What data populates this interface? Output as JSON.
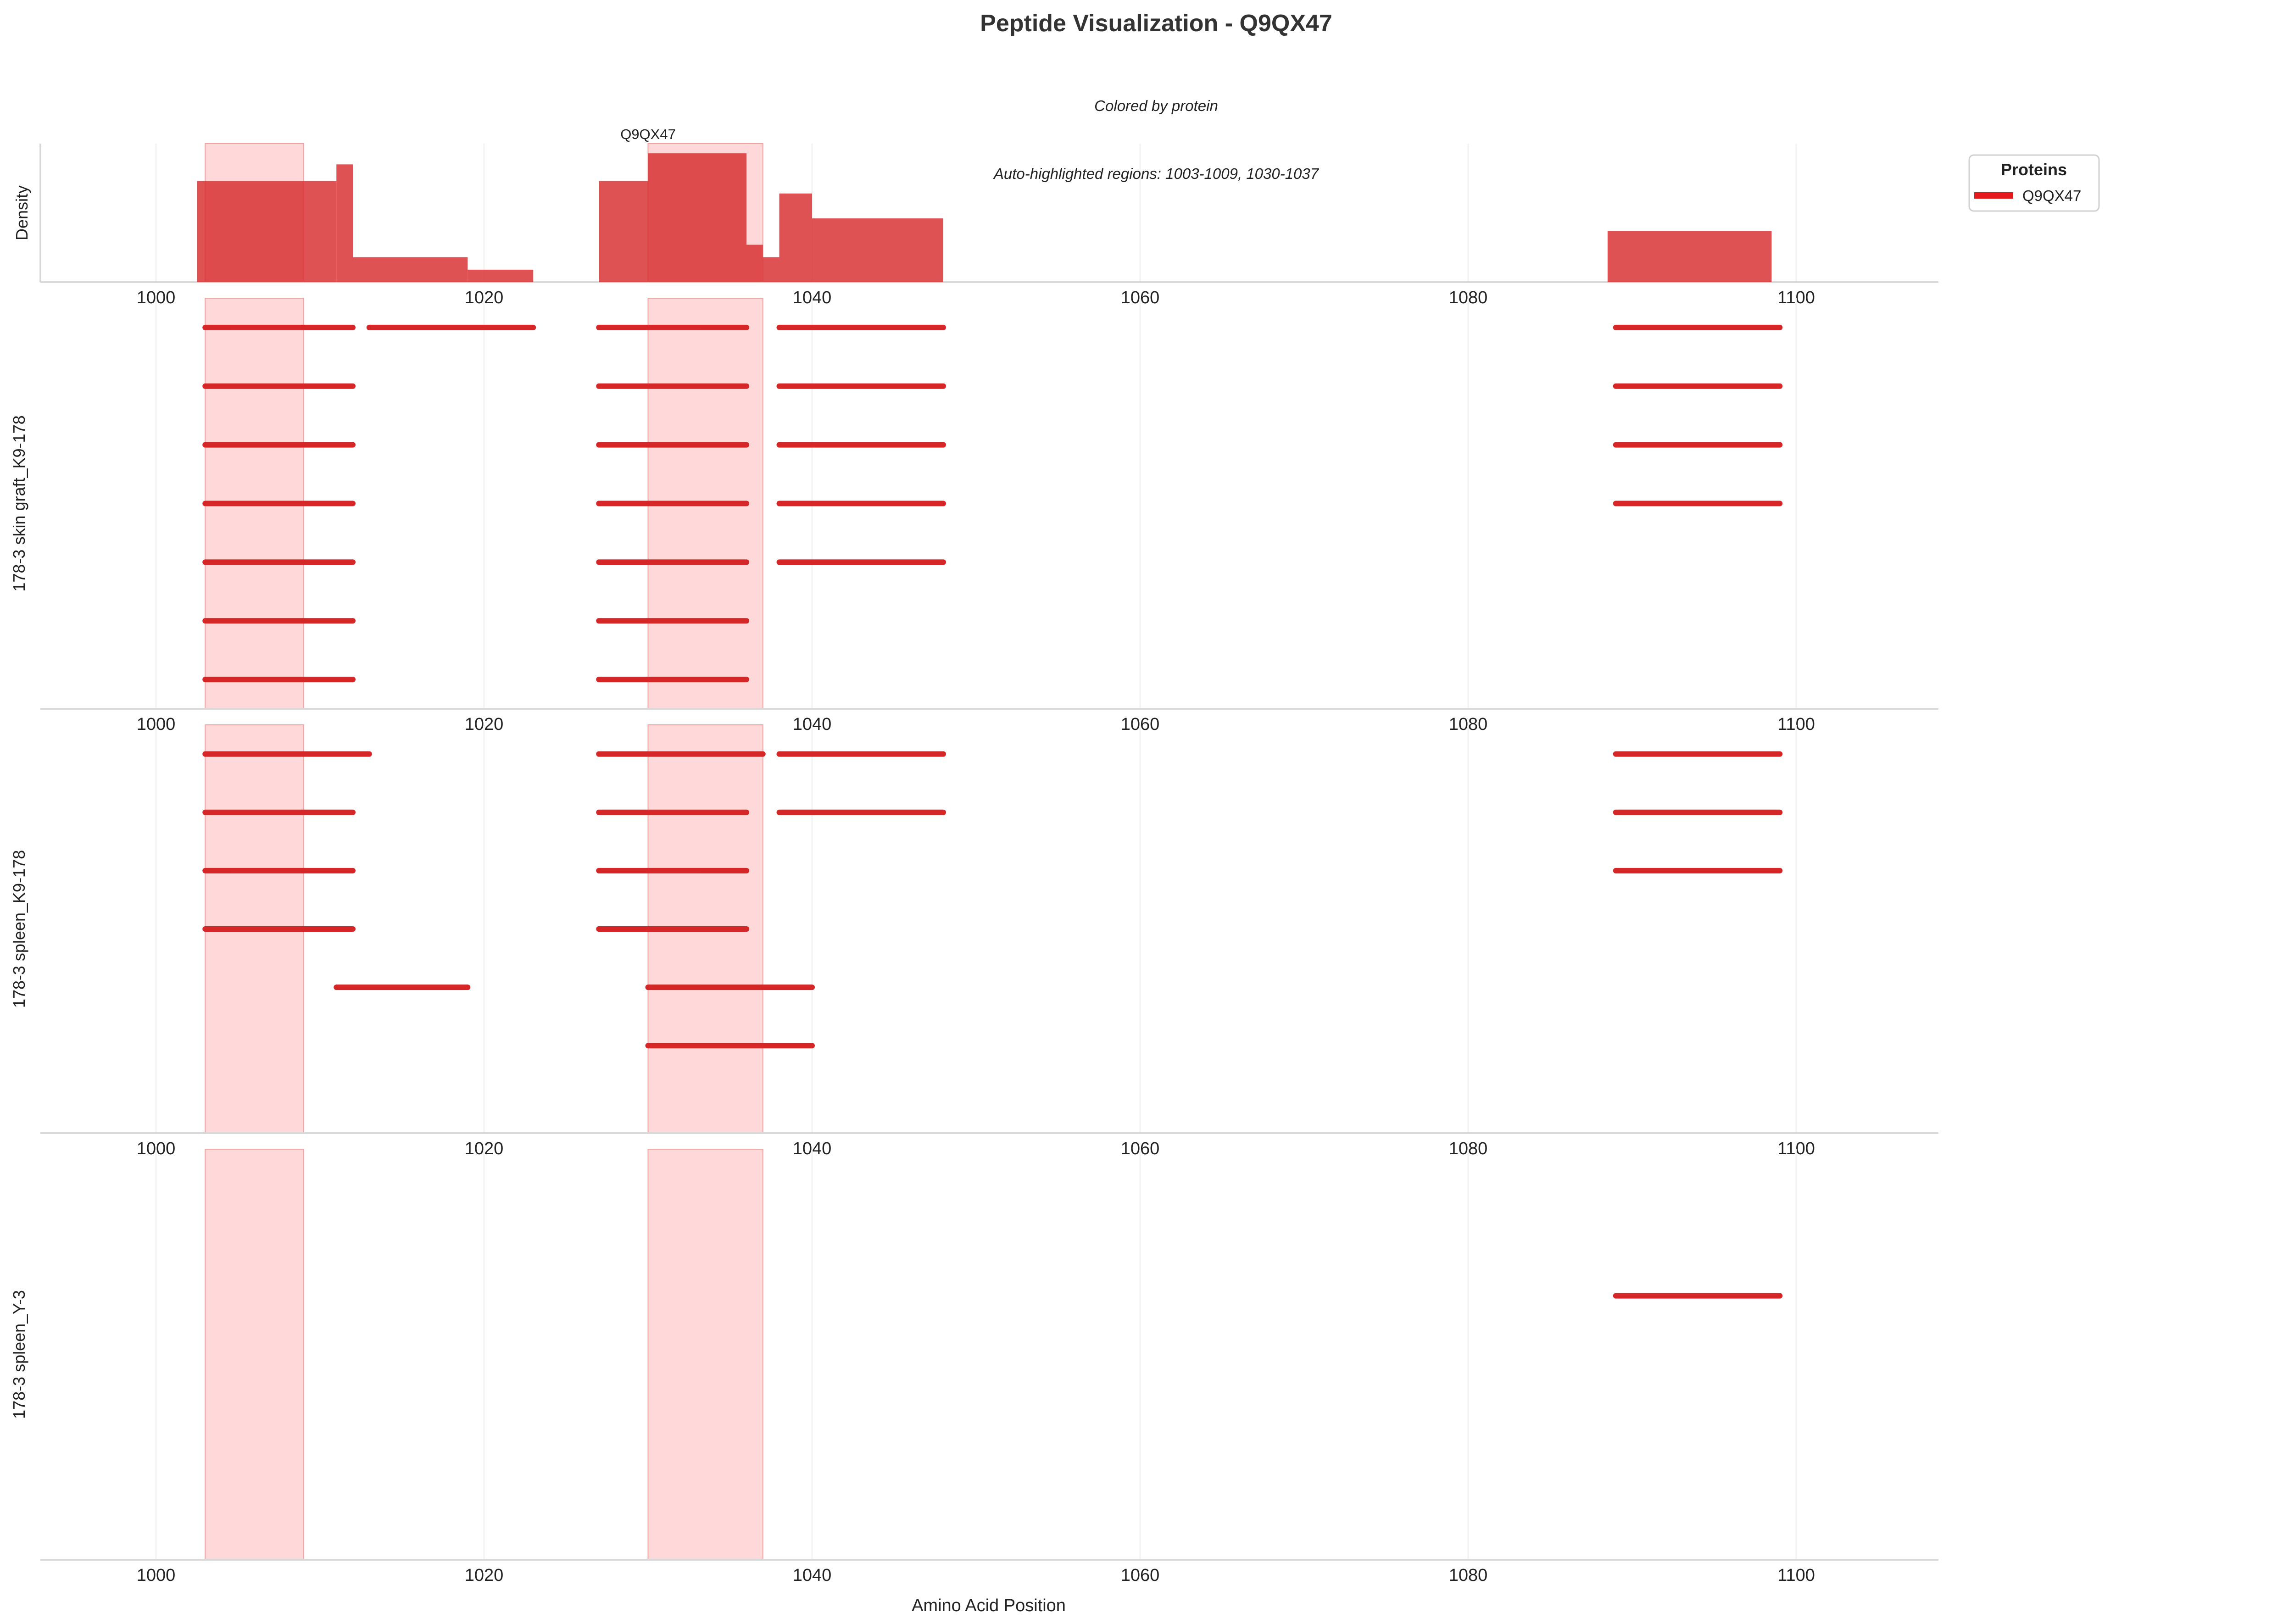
{
  "title": "Peptide Visualization - Q9QX47",
  "subtitle": "Colored by protein",
  "color": "#d62728",
  "highlight_color": "#ffb3b3",
  "chart_data": {
    "type": "bar",
    "xlabel": "Amino Acid Position",
    "xlim": [
      994,
      1109
    ],
    "xticks": [
      1000,
      1020,
      1040,
      1060,
      1080,
      1100
    ],
    "highlight_regions": [
      [
        1003,
        1009
      ],
      [
        1030,
        1037
      ]
    ],
    "highlight_note": "Auto-highlighted regions: 1003-1009, 1030-1037",
    "protein_label": "Q9QX47",
    "protein_label_x": 1030,
    "legend": {
      "title": "Proteins",
      "entries": [
        "Q9QX47"
      ],
      "placement": "right"
    },
    "density": {
      "ylabel": "Density",
      "bars": [
        {
          "start": 1002.5,
          "end": 1009,
          "value": 0.73
        },
        {
          "start": 1009,
          "end": 1011,
          "value": 0.73
        },
        {
          "start": 1011,
          "end": 1012,
          "value": 0.85
        },
        {
          "start": 1012,
          "end": 1019,
          "value": 0.18
        },
        {
          "start": 1019,
          "end": 1023,
          "value": 0.09
        },
        {
          "start": 1027,
          "end": 1030,
          "value": 0.73
        },
        {
          "start": 1030,
          "end": 1036,
          "value": 0.93
        },
        {
          "start": 1036,
          "end": 1037,
          "value": 0.27
        },
        {
          "start": 1037,
          "end": 1038,
          "value": 0.18
        },
        {
          "start": 1038,
          "end": 1040,
          "value": 0.64
        },
        {
          "start": 1040,
          "end": 1048,
          "value": 0.46
        },
        {
          "start": 1088.5,
          "end": 1098.5,
          "value": 0.37
        }
      ]
    },
    "samples": [
      {
        "name": "178-3 skin graft_K9-178",
        "peptides": [
          {
            "start": 1003,
            "end": 1012,
            "row": 0
          },
          {
            "start": 1013,
            "end": 1023,
            "row": 0
          },
          {
            "start": 1027,
            "end": 1036,
            "row": 0
          },
          {
            "start": 1038,
            "end": 1048,
            "row": 0
          },
          {
            "start": 1089,
            "end": 1099,
            "row": 0
          },
          {
            "start": 1003,
            "end": 1012,
            "row": 1
          },
          {
            "start": 1027,
            "end": 1036,
            "row": 1
          },
          {
            "start": 1038,
            "end": 1048,
            "row": 1
          },
          {
            "start": 1089,
            "end": 1099,
            "row": 1
          },
          {
            "start": 1003,
            "end": 1012,
            "row": 2
          },
          {
            "start": 1027,
            "end": 1036,
            "row": 2
          },
          {
            "start": 1038,
            "end": 1048,
            "row": 2
          },
          {
            "start": 1089,
            "end": 1099,
            "row": 2
          },
          {
            "start": 1003,
            "end": 1012,
            "row": 3
          },
          {
            "start": 1027,
            "end": 1036,
            "row": 3
          },
          {
            "start": 1038,
            "end": 1048,
            "row": 3
          },
          {
            "start": 1089,
            "end": 1099,
            "row": 3
          },
          {
            "start": 1003,
            "end": 1012,
            "row": 4
          },
          {
            "start": 1027,
            "end": 1036,
            "row": 4
          },
          {
            "start": 1038,
            "end": 1048,
            "row": 4
          },
          {
            "start": 1003,
            "end": 1012,
            "row": 5
          },
          {
            "start": 1027,
            "end": 1036,
            "row": 5
          },
          {
            "start": 1003,
            "end": 1012,
            "row": 6
          },
          {
            "start": 1027,
            "end": 1036,
            "row": 6
          }
        ]
      },
      {
        "name": "178-3 spleen_K9-178",
        "peptides": [
          {
            "start": 1003,
            "end": 1013,
            "row": 0
          },
          {
            "start": 1027,
            "end": 1037,
            "row": 0
          },
          {
            "start": 1038,
            "end": 1048,
            "row": 0
          },
          {
            "start": 1089,
            "end": 1099,
            "row": 0
          },
          {
            "start": 1003,
            "end": 1012,
            "row": 1
          },
          {
            "start": 1027,
            "end": 1036,
            "row": 1
          },
          {
            "start": 1038,
            "end": 1048,
            "row": 1
          },
          {
            "start": 1089,
            "end": 1099,
            "row": 1
          },
          {
            "start": 1003,
            "end": 1012,
            "row": 2
          },
          {
            "start": 1027,
            "end": 1036,
            "row": 2
          },
          {
            "start": 1089,
            "end": 1099,
            "row": 2
          },
          {
            "start": 1003,
            "end": 1012,
            "row": 3
          },
          {
            "start": 1027,
            "end": 1036,
            "row": 3
          },
          {
            "start": 1011,
            "end": 1019,
            "row": 4
          },
          {
            "start": 1030,
            "end": 1040,
            "row": 4
          },
          {
            "start": 1030,
            "end": 1040,
            "row": 5
          }
        ]
      },
      {
        "name": "178-3 spleen_Y-3",
        "peptides": [
          {
            "start": 1089,
            "end": 1099,
            "row": 2
          }
        ]
      }
    ]
  }
}
